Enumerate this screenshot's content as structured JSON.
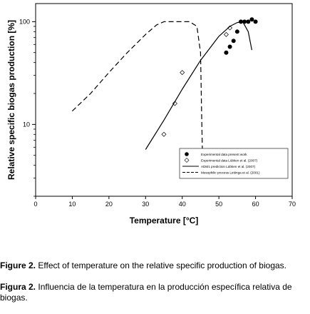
{
  "chart_data": {
    "type": "scatter",
    "xlabel": "Temperature [°C]",
    "ylabel": "Relative specific biogas production [%]",
    "xlim": [
      0,
      70
    ],
    "ylim": [
      2,
      150
    ],
    "y_scale": "log",
    "x_ticks": [
      0,
      10,
      20,
      30,
      40,
      50,
      60,
      70
    ],
    "y_ticks": [
      {
        "value": 10,
        "label": "10"
      },
      {
        "value": 100,
        "label": "100"
      }
    ],
    "grid": false,
    "legend_position": "bottom-right inside plot",
    "series": [
      {
        "name": "Experimental data present work",
        "kind": "scatter",
        "marker": "filled-circle",
        "x": [
          52,
          53,
          54,
          55,
          56,
          57,
          58,
          59,
          60
        ],
        "y": [
          50,
          57,
          65,
          80,
          100,
          100,
          100,
          105,
          100
        ]
      },
      {
        "name": "Experimental data Lübken et al. (2007)",
        "kind": "scatter",
        "marker": "open-diamond",
        "x": [
          35,
          38,
          40,
          52,
          53
        ],
        "y": [
          8,
          16,
          32,
          75,
          87
        ]
      },
      {
        "name": "ADM1 prediction Lübken et al. (2007)",
        "kind": "line",
        "style": "solid",
        "x": [
          30,
          35,
          40,
          45,
          50,
          53,
          55,
          56.5,
          58,
          59
        ],
        "y": [
          5.7,
          11,
          22,
          42,
          72,
          90,
          98,
          100,
          80,
          53
        ]
      },
      {
        "name": "Mesophilic process Lettinga et al. (2001)",
        "kind": "line",
        "style": "dashed",
        "x": [
          10,
          15,
          20,
          25,
          30,
          33,
          35,
          38,
          42,
          44,
          45,
          45.3,
          45.5
        ],
        "y": [
          13.5,
          20,
          32,
          50,
          75,
          93,
          100,
          100,
          100,
          90,
          50,
          12,
          5.5
        ]
      }
    ]
  },
  "captions": {
    "english": {
      "label": "Figure 2.",
      "text": "Effect of temperature on the relative specific production of biogas."
    },
    "spanish": {
      "label": "Figura 2.",
      "text": "Influencia de la temperatura en la producción específica relativa de biogas."
    }
  }
}
